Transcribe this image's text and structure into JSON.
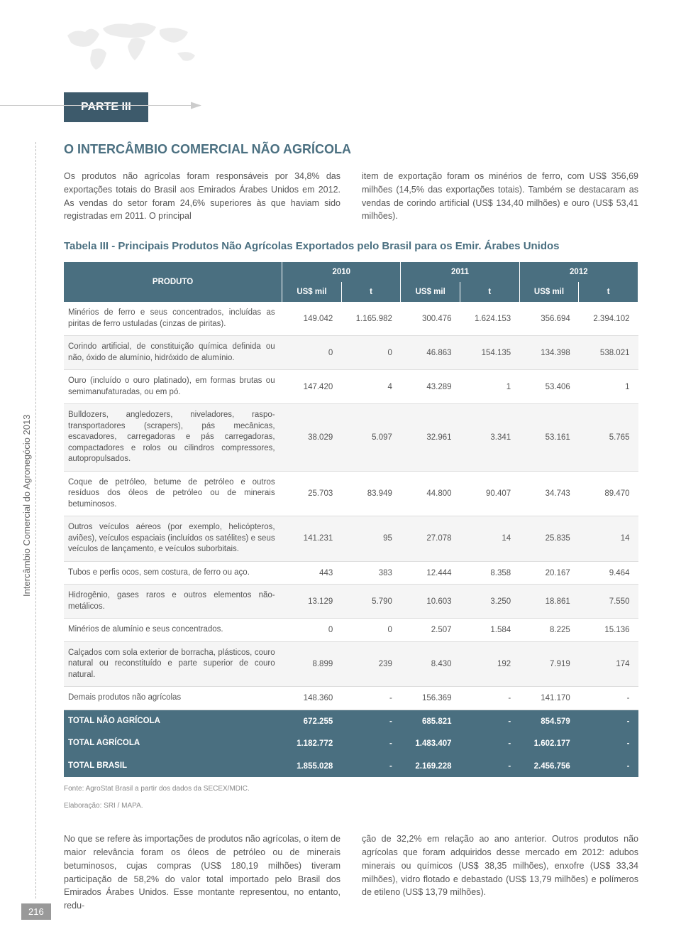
{
  "part_label": "PARTE III",
  "section_title": "O INTERCÂMBIO COMERCIAL NÃO AGRÍCOLA",
  "intro_left": "Os produtos não agrícolas foram responsáveis por 34,8% das exportações totais do Brasil aos Emirados Árabes Unidos em 2012. As vendas do setor foram 24,6% superiores às que haviam sido registradas em 2011. O principal",
  "intro_right": "item de exportação foram os minérios de ferro, com US$ 356,69 milhões (14,5% das exportações totais). Também se destacaram as vendas de corindo artificial (US$ 134,40 milhões) e ouro (US$ 53,41 milhões).",
  "table_title": "Tabela III - Principais Produtos Não Agrícolas Exportados pelo Brasil para os Emir. Árabes Unidos",
  "table": {
    "header_product": "PRODUTO",
    "years": [
      "2010",
      "2011",
      "2012"
    ],
    "subcols": [
      "US$ mil",
      "t"
    ],
    "rows": [
      {
        "label": "Minérios de ferro e seus concentrados, incluídas as piritas de ferro ustuladas (cinzas de piritas).",
        "v": [
          "149.042",
          "1.165.982",
          "300.476",
          "1.624.153",
          "356.694",
          "2.394.102"
        ]
      },
      {
        "label": "Corindo artificial, de constituição química definida ou não, óxido de alumínio, hidróxido de alumínio.",
        "v": [
          "0",
          "0",
          "46.863",
          "154.135",
          "134.398",
          "538.021"
        ]
      },
      {
        "label": "Ouro (incluído o ouro platinado), em formas brutas ou semimanufaturadas, ou em pó.",
        "v": [
          "147.420",
          "4",
          "43.289",
          "1",
          "53.406",
          "1"
        ]
      },
      {
        "label": "Bulldozers, angledozers, niveladores, raspo-transportadores (scrapers), pás mecânicas, escavadores, carregadoras e pás carregadoras, compactadores e rolos ou cilindros compressores, autopropulsados.",
        "v": [
          "38.029",
          "5.097",
          "32.961",
          "3.341",
          "53.161",
          "5.765"
        ]
      },
      {
        "label": "Coque de petróleo, betume de petróleo e outros resíduos dos óleos de petróleo ou de minerais betuminosos.",
        "v": [
          "25.703",
          "83.949",
          "44.800",
          "90.407",
          "34.743",
          "89.470"
        ]
      },
      {
        "label": "Outros veículos aéreos (por exemplo, helicópteros, aviões), veículos espaciais (incluídos os satélites) e seus veículos de lançamento, e veículos suborbitais.",
        "v": [
          "141.231",
          "95",
          "27.078",
          "14",
          "25.835",
          "14"
        ]
      },
      {
        "label": "Tubos e perfis ocos, sem costura, de ferro ou aço.",
        "v": [
          "443",
          "383",
          "12.444",
          "8.358",
          "20.167",
          "9.464"
        ]
      },
      {
        "label": "Hidrogênio, gases raros e outros elementos não-metálicos.",
        "v": [
          "13.129",
          "5.790",
          "10.603",
          "3.250",
          "18.861",
          "7.550"
        ]
      },
      {
        "label": "Minérios de alumínio e seus concentrados.",
        "v": [
          "0",
          "0",
          "2.507",
          "1.584",
          "8.225",
          "15.136"
        ]
      },
      {
        "label": "Calçados com sola exterior de borracha, plásticos, couro natural ou reconstituído e parte superior de couro natural.",
        "v": [
          "8.899",
          "239",
          "8.430",
          "192",
          "7.919",
          "174"
        ]
      },
      {
        "label": "Demais produtos não agrícolas",
        "v": [
          "148.360",
          "-",
          "156.369",
          "-",
          "141.170",
          "-"
        ]
      }
    ],
    "totals": [
      {
        "label": "TOTAL NÃO AGRÍCOLA",
        "v": [
          "672.255",
          "-",
          "685.821",
          "-",
          "854.579",
          "-"
        ]
      },
      {
        "label": "TOTAL AGRÍCOLA",
        "v": [
          "1.182.772",
          "-",
          "1.483.407",
          "-",
          "1.602.177",
          "-"
        ]
      },
      {
        "label": "TOTAL BRASIL",
        "v": [
          "1.855.028",
          "-",
          "2.169.228",
          "-",
          "2.456.756",
          "-"
        ]
      }
    ]
  },
  "source1": "Fonte: AgroStat Brasil a partir dos dados da SECEX/MDIC.",
  "source2": "Elaboração: SRI / MAPA.",
  "footer_left": "No que se refere às importações de produtos não agrícolas, o item de maior relevância foram os óleos de petróleo ou de minerais betuminosos, cujas compras (US$ 180,19 milhões) tiveram participação de 58,2% do valor total importado pelo Brasil dos Emirados Árabes Unidos. Esse montante representou, no entanto, redu-",
  "footer_right": "ção de 32,2% em relação ao ano anterior. Outros produtos não agrícolas que foram adquiridos desse mercado em 2012: adubos minerais ou químicos (US$ 38,35 milhões), enxofre (US$ 33,34 milhões), vidro flotado e debastado (US$ 13,79 milhões) e polímeros de etileno (US$ 13,79 milhões).",
  "side_label": "Intercâmbio Comercial do Agronegócio 2013",
  "page_num": "216",
  "colors": {
    "header_bg": "#3d5a6b",
    "accent": "#4a6f80",
    "text": "#555555"
  }
}
